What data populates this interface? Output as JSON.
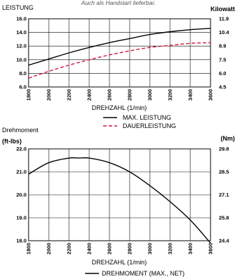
{
  "header_text": "Auch als Handstart lieferbar.",
  "chart_data": [
    {
      "type": "line",
      "left_axis_title": "LEISTUNG",
      "right_axis_title": "Kilowatt",
      "xlabel": "DREHZAHL (1/min)",
      "x_ticks": [
        1800,
        2000,
        2200,
        2400,
        2600,
        2800,
        3000,
        3200,
        3400,
        3600
      ],
      "x_range": [
        1800,
        3600
      ],
      "y_left_ticks": [
        "16.0",
        "14.0",
        "12.0",
        "10.0",
        "8.0",
        "6.0"
      ],
      "y_left_range": [
        6,
        16
      ],
      "y_right_ticks": [
        "11.9",
        "10.4",
        "8.9",
        "7.5",
        "6.0",
        "4.5"
      ],
      "grid": true,
      "legend_position": "bottom-center",
      "series": [
        {
          "name": "MAX. LEISTUNG",
          "style": "solid",
          "color": "#000000",
          "x": [
            1800,
            2000,
            2200,
            2400,
            2600,
            2800,
            3000,
            3200,
            3400,
            3600
          ],
          "y": [
            9.2,
            10.1,
            11.0,
            11.8,
            12.5,
            13.1,
            13.7,
            14.1,
            14.4,
            14.6
          ]
        },
        {
          "name": "DAUERLEISTUNG",
          "style": "dashed",
          "color": "#d0143c",
          "x": [
            1800,
            2000,
            2200,
            2400,
            2600,
            2800,
            3000,
            3200,
            3400,
            3600
          ],
          "y": [
            7.3,
            8.3,
            9.2,
            10.0,
            10.7,
            11.3,
            11.8,
            12.1,
            12.4,
            12.5
          ]
        }
      ]
    },
    {
      "type": "line",
      "title": "Drehmoment",
      "left_axis_title": "(ft-lbs)",
      "right_axis_title": "(Nm)",
      "xlabel": "DREHZAHL (1/min)",
      "x_ticks": [
        1800,
        2000,
        2200,
        2400,
        2600,
        2800,
        3000,
        3200,
        3400,
        3600
      ],
      "x_range": [
        1800,
        3600
      ],
      "y_left_ticks": [
        "22.0",
        "21.0",
        "20.0",
        "19.0",
        "18.0"
      ],
      "y_left_range": [
        18,
        22
      ],
      "y_right_ticks": [
        "29.8",
        "28.5",
        "27.1",
        "25.8",
        "24.4"
      ],
      "grid": true,
      "legend_position": "bottom-center",
      "series": [
        {
          "name": "DREHMOMENT (MAX., NET)",
          "style": "solid",
          "color": "#000000",
          "x": [
            1800,
            2000,
            2200,
            2300,
            2400,
            2600,
            2800,
            3000,
            3200,
            3400,
            3600
          ],
          "y": [
            20.9,
            21.4,
            21.6,
            21.6,
            21.6,
            21.4,
            21.0,
            20.4,
            19.7,
            18.9,
            17.9
          ]
        }
      ]
    }
  ]
}
